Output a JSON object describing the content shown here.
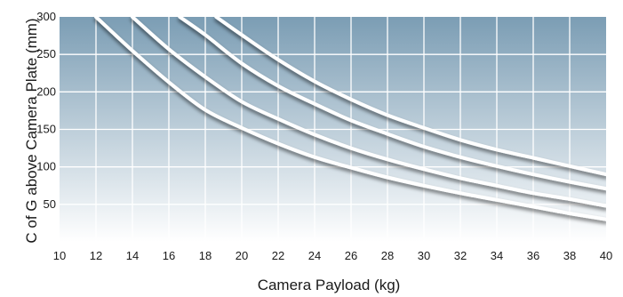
{
  "chart_data": {
    "type": "line",
    "title": "",
    "xlabel": "Camera Payload (kg)",
    "ylabel": "C of G above Camera Plate (mm)",
    "xlim": [
      10,
      40
    ],
    "ylim": [
      0,
      300
    ],
    "x_ticks": [
      10,
      12,
      14,
      16,
      18,
      20,
      22,
      24,
      26,
      28,
      30,
      32,
      34,
      36,
      38,
      40
    ],
    "y_ticks": [
      50,
      100,
      150,
      200,
      250,
      300
    ],
    "grid": true,
    "legend": "none",
    "series": [
      {
        "x": [
          12,
          14,
          16,
          18,
          20,
          22,
          24,
          26,
          28,
          30,
          32,
          34,
          36,
          38,
          40
        ],
        "y": [
          300,
          255,
          213,
          176,
          152,
          131,
          113,
          99,
          86,
          75,
          65,
          56,
          47,
          38,
          30
        ]
      },
      {
        "x": [
          14,
          16,
          18,
          20,
          22,
          24,
          26,
          28,
          30,
          32,
          34,
          36,
          38,
          40
        ],
        "y": [
          300,
          257,
          220,
          187,
          164,
          143,
          125,
          110,
          97,
          85,
          75,
          65,
          57,
          48
        ]
      },
      {
        "x": [
          16.6,
          18,
          20,
          22,
          24,
          26,
          28,
          30,
          32,
          34,
          36,
          38,
          40
        ],
        "y": [
          300,
          276,
          238,
          208,
          184,
          162,
          144,
          127,
          113,
          101,
          90,
          80,
          71
        ]
      },
      {
        "x": [
          18.6,
          20,
          22,
          24,
          26,
          28,
          30,
          32,
          34,
          36,
          38,
          40
        ],
        "y": [
          300,
          276,
          243,
          214,
          190,
          169,
          152,
          136,
          123,
          112,
          101,
          90
        ]
      }
    ],
    "colors": {
      "bg_top": "#7b9db4",
      "bg_bottom": "#ffffff",
      "grid": "#ffffff",
      "line": "#ffffff",
      "shadow": "#3c4e5c"
    }
  }
}
